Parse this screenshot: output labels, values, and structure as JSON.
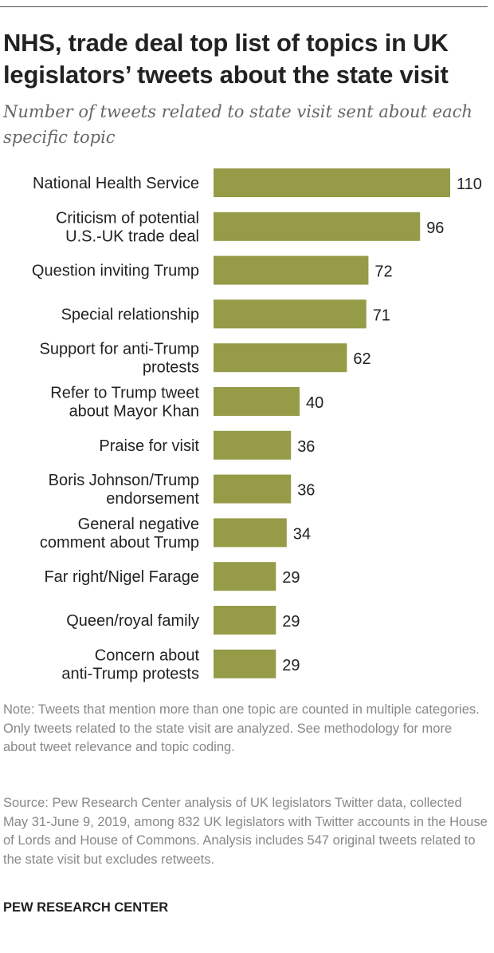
{
  "title": "NHS, trade deal top list of topics in UK legislators’ tweets about the state visit",
  "subtitle": "Number of tweets related to state visit sent about each specific topic",
  "chart_data": {
    "type": "bar",
    "orientation": "horizontal",
    "bar_color": "#959b46",
    "categories": [
      [
        "National Health Service"
      ],
      [
        "Criticism of potential",
        "U.S.-UK trade deal"
      ],
      [
        "Question inviting Trump"
      ],
      [
        "Special relationship"
      ],
      [
        "Support for anti-Trump",
        "protests"
      ],
      [
        "Refer to Trump tweet",
        "about Mayor Khan"
      ],
      [
        "Praise for visit"
      ],
      [
        "Boris Johnson/Trump",
        "endorsement"
      ],
      [
        "General negative",
        "comment about Trump"
      ],
      [
        "Far right/Nigel Farage"
      ],
      [
        "Queen/royal family"
      ],
      [
        "Concern about",
        "anti-Trump protests"
      ]
    ],
    "values": [
      110,
      96,
      72,
      71,
      62,
      40,
      36,
      36,
      34,
      29,
      29,
      29
    ],
    "xlim": [
      0,
      110
    ]
  },
  "note": "Note: Tweets that mention more than one topic are counted in multiple categories. Only tweets related to the state visit are analyzed. See methodology for more about tweet relevance and topic coding.",
  "source": "Source: Pew Research Center analysis of UK legislators Twitter data, collected May 31-June 9, 2019, among 832 UK legislators with Twitter accounts in the House of Lords and House of Commons. Analysis includes 547 original tweets related to the state visit but excludes retweets.",
  "brand": "PEW RESEARCH CENTER"
}
